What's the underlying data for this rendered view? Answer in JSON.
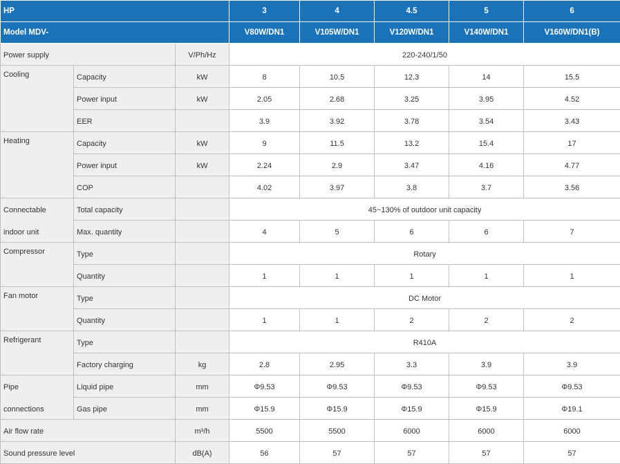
{
  "header": {
    "hp_label": "HP",
    "hp_values": [
      "3",
      "4",
      "4.5",
      "5",
      "6"
    ],
    "model_label": "Model MDV-",
    "models": [
      "V80W/DN1",
      "V105W/DN1",
      "V120W/DN1",
      "V140W/DN1",
      "V160W/DN1(B)"
    ]
  },
  "rows": {
    "power_supply": {
      "label": "Power supply",
      "unit": "V/Ph/Hz",
      "value": "220-240/1/50"
    },
    "cooling": {
      "label": "Cooling",
      "capacity": {
        "label": "Capacity",
        "unit": "kW",
        "values": [
          "8",
          "10.5",
          "12.3",
          "14",
          "15.5"
        ]
      },
      "power_input": {
        "label": "Power input",
        "unit": "kW",
        "values": [
          "2.05",
          "2.68",
          "3.25",
          "3.95",
          "4.52"
        ]
      },
      "eer": {
        "label": "EER",
        "values": [
          "3.9",
          "3.92",
          "3.78",
          "3.54",
          "3.43"
        ]
      }
    },
    "heating": {
      "label": "Heating",
      "capacity": {
        "label": "Capacity",
        "unit": "kW",
        "values": [
          "9",
          "11.5",
          "13.2",
          "15.4",
          "17"
        ]
      },
      "power_input": {
        "label": "Power input",
        "unit": "kW",
        "values": [
          "2.24",
          "2.9",
          "3.47",
          "4.16",
          "4.77"
        ]
      },
      "cop": {
        "label": "COP",
        "values": [
          "4.02",
          "3.97",
          "3.8",
          "3.7",
          "3.56"
        ]
      }
    },
    "connectable": {
      "label_line1": "Connectable",
      "label_line2": "indoor unit",
      "total_capacity": {
        "label": "Total capacity",
        "value": "45~130% of outdoor unit capacity"
      },
      "max_quantity": {
        "label": "Max. quantity",
        "values": [
          "4",
          "5",
          "6",
          "6",
          "7"
        ]
      }
    },
    "compressor": {
      "label": "Compressor",
      "type": {
        "label": "Type",
        "value": "Rotary"
      },
      "quantity": {
        "label": "Quantity",
        "values": [
          "1",
          "1",
          "1",
          "1",
          "1"
        ]
      }
    },
    "fan_motor": {
      "label": "Fan motor",
      "type": {
        "label": "Type",
        "value": "DC Motor"
      },
      "quantity": {
        "label": "Quantity",
        "values": [
          "1",
          "1",
          "2",
          "2",
          "2"
        ]
      }
    },
    "refrigerant": {
      "label": "Refrigerant",
      "type": {
        "label": "Type",
        "value": "R410A"
      },
      "factory_charging": {
        "label": "Factory charging",
        "unit": "kg",
        "values": [
          "2.8",
          "2.95",
          "3.3",
          "3.9",
          "3.9"
        ]
      }
    },
    "pipe": {
      "label_line1": "Pipe",
      "label_line2": "connections",
      "liquid": {
        "label": "Liquid pipe",
        "unit": "mm",
        "values": [
          "Φ9.53",
          "Φ9.53",
          "Φ9.53",
          "Φ9.53",
          "Φ9.53"
        ]
      },
      "gas": {
        "label": "Gas pipe",
        "unit": "mm",
        "values": [
          "Φ15.9",
          "Φ15.9",
          "Φ15.9",
          "Φ15.9",
          "Φ19.1"
        ]
      }
    },
    "air_flow": {
      "label": "Air flow rate",
      "unit": "m³/h",
      "values": [
        "5500",
        "5500",
        "6000",
        "6000",
        "6000"
      ]
    },
    "sound": {
      "label": "Sound pressure level",
      "unit": "dB(A)",
      "values": [
        "56",
        "57",
        "57",
        "57",
        "57"
      ]
    }
  },
  "colors": {
    "header_bg": "#1a73b8",
    "label_bg": "#efefef",
    "border": "#bfbfbf"
  }
}
